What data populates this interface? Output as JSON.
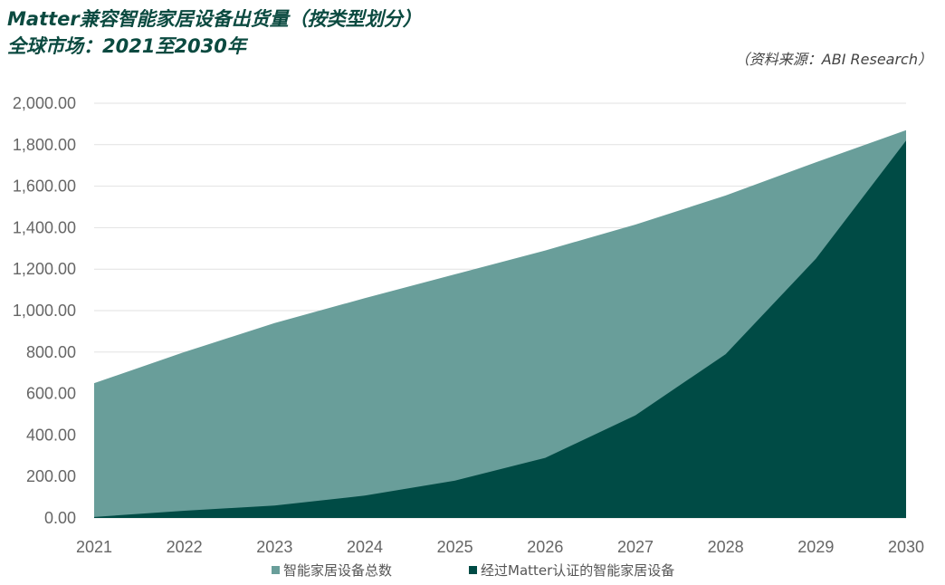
{
  "title_line1": "Matter兼容智能家居设备出货量（按类型划分）",
  "title_line2": "全球市场：2021至2030年",
  "source": "（资料来源：ABI Research）",
  "colors": {
    "total": "#699e9a",
    "matter": "#004b45",
    "grid": "#e2e2e2"
  },
  "chart_data": {
    "type": "area",
    "x": [
      "2021",
      "2022",
      "2023",
      "2024",
      "2025",
      "2026",
      "2027",
      "2028",
      "2029",
      "2030"
    ],
    "ylim": [
      0,
      2000
    ],
    "yticks": [
      "0.00",
      "200.00",
      "400.00",
      "600.00",
      "800.00",
      "1,000.00",
      "1,200.00",
      "1,400.00",
      "1,600.00",
      "1,800.00",
      "2,000.00"
    ],
    "grid": true,
    "legend": "bottom",
    "series": [
      {
        "name": "智能家居设备总数",
        "values": [
          650,
          800,
          940,
          1060,
          1175,
          1290,
          1415,
          1555,
          1715,
          1870
        ]
      },
      {
        "name": "经过Matter认证的智能家居设备",
        "values": [
          5,
          35,
          60,
          108,
          180,
          290,
          495,
          790,
          1250,
          1820
        ]
      }
    ]
  }
}
